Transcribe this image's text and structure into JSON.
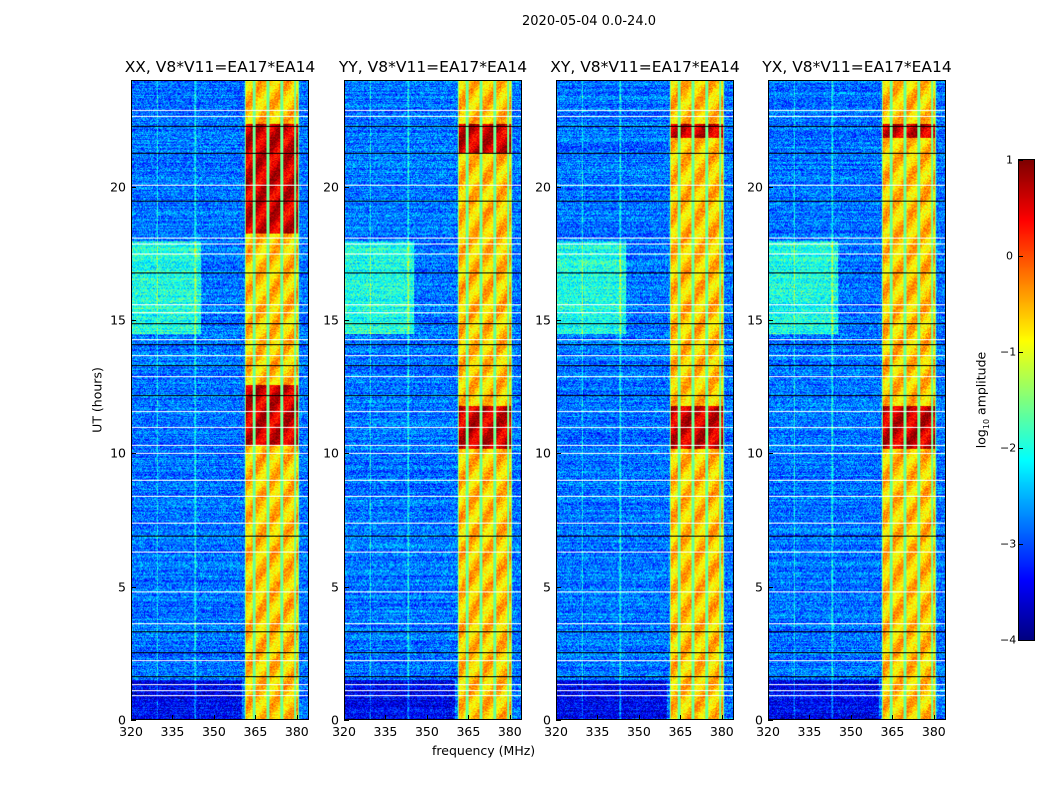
{
  "chart_data": {
    "type": "heatmap",
    "title": "2020-05-04 0.0-24.0",
    "xlabel": "frequency (MHz)",
    "ylabel": "UT (hours)",
    "xlim": [
      320,
      384.4
    ],
    "ylim": [
      0,
      24
    ],
    "xticks": [
      "320",
      "335",
      "350",
      "365",
      "380"
    ],
    "xtick_values": [
      320,
      335,
      350,
      365,
      380
    ],
    "yticks": [
      "0",
      "5",
      "10",
      "15",
      "20"
    ],
    "ytick_values": [
      0,
      5,
      10,
      15,
      20
    ],
    "panels": [
      {
        "title": "XX, V8*V11=EA17*EA14",
        "strong_periods": [
          [
            10.3,
            12.6
          ],
          [
            18.3,
            22.4
          ]
        ]
      },
      {
        "title": "YY, V8*V11=EA17*EA14",
        "strong_periods": [
          [
            10.2,
            11.8
          ],
          [
            21.3,
            22.4
          ]
        ]
      },
      {
        "title": "XY, V8*V11=EA17*EA14",
        "strong_periods": [
          [
            10.2,
            11.8
          ],
          [
            21.9,
            22.4
          ]
        ]
      },
      {
        "title": "YX, V8*V11=EA17*EA14",
        "strong_periods": [
          [
            10.2,
            11.8
          ],
          [
            21.9,
            22.4
          ]
        ]
      }
    ],
    "signal_band_mhz": [
      361,
      381
    ],
    "background_log_amplitude": -2.8,
    "band_log_amplitude": -0.6,
    "strong_log_amplitude": 0.6,
    "flagged_hours": [
      0.9,
      1.1,
      1.3,
      1.6,
      2.2,
      2.5,
      3.3,
      3.6,
      4.8,
      6.3,
      6.9,
      7.4,
      8.4,
      9.0,
      10.0,
      10.3,
      11.0,
      11.6,
      12.2,
      12.9,
      13.3,
      13.7,
      14.1,
      14.3,
      14.9,
      15.3,
      15.6,
      16.8,
      17.5,
      17.9,
      18.1,
      19.5,
      20.1,
      21.3,
      22.3,
      22.7,
      22.9
    ],
    "colorbar": {
      "label": "log10 amplitude",
      "range": [
        -4,
        1
      ],
      "ticks": [
        "1",
        "0",
        "−1",
        "−2",
        "−3",
        "−4"
      ],
      "tick_values": [
        1,
        0,
        -1,
        -2,
        -3,
        -4
      ],
      "colormap": "jet"
    }
  }
}
